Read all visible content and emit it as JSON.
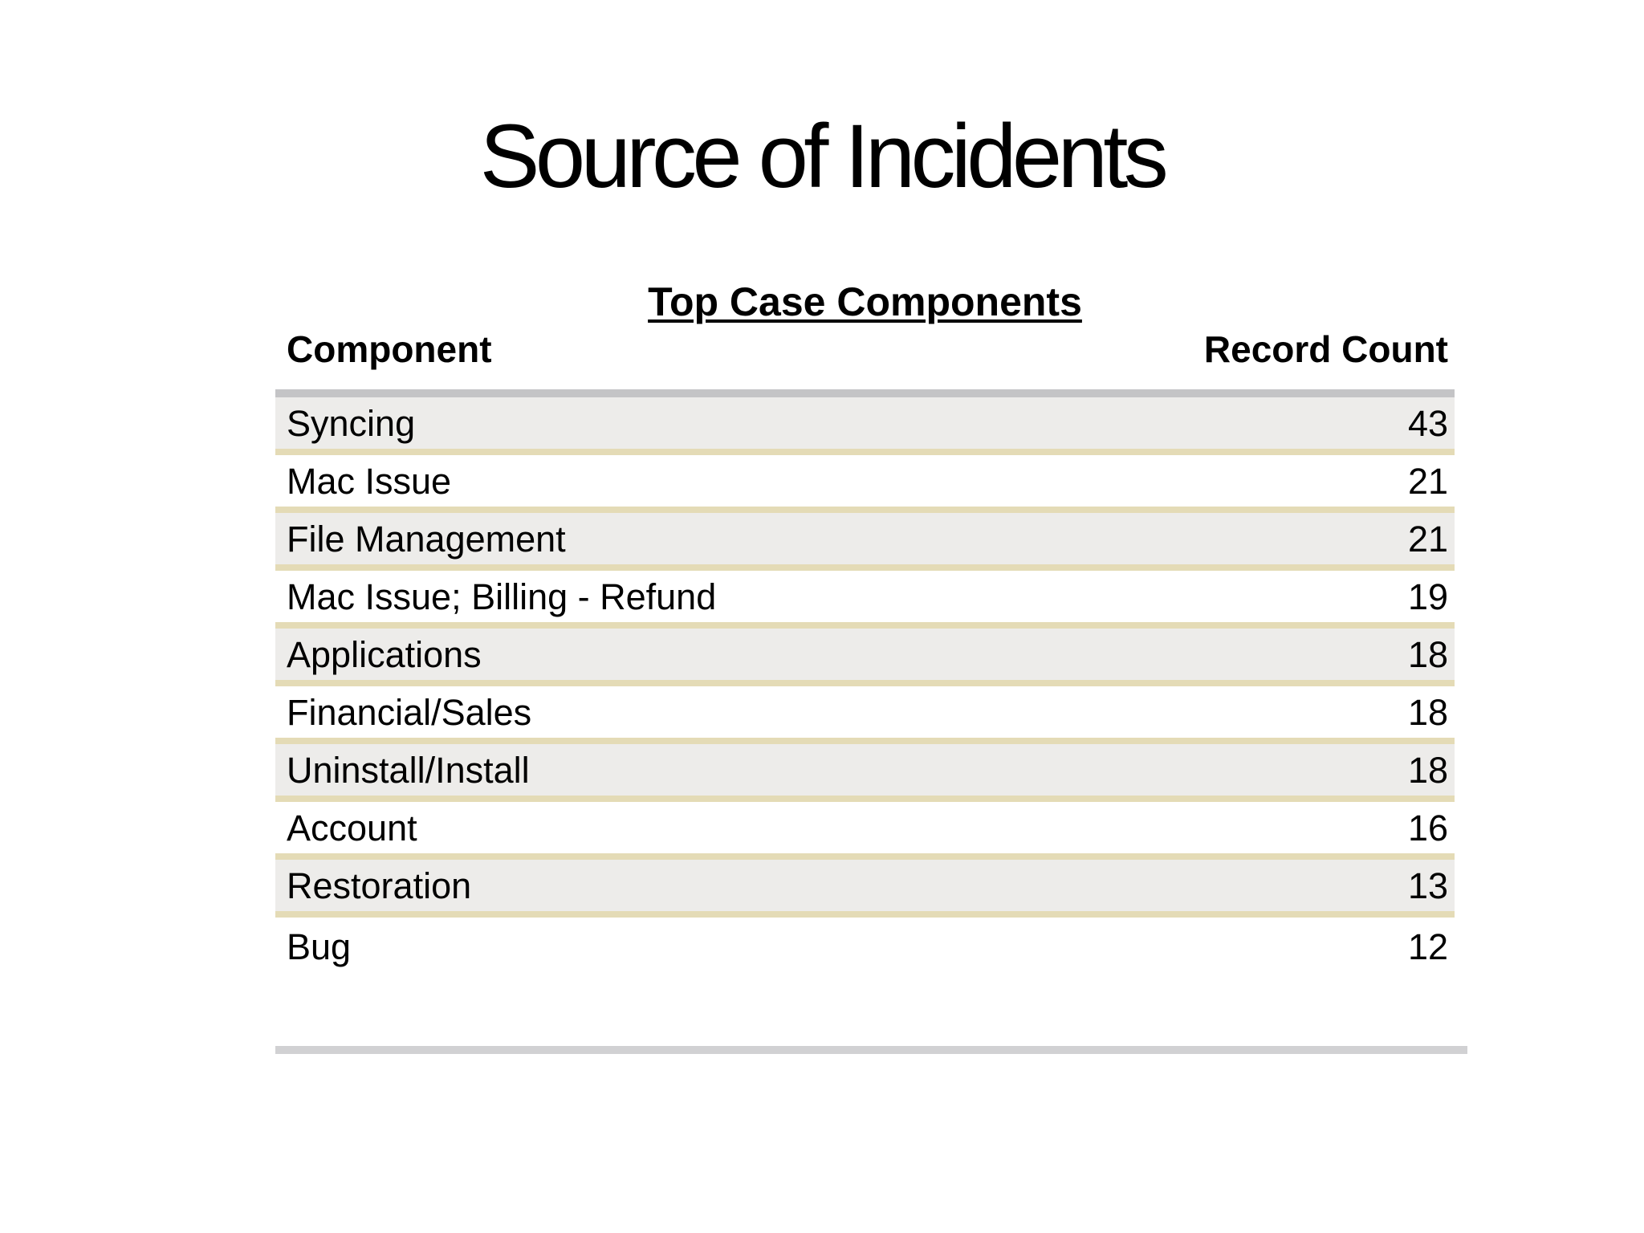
{
  "slide": {
    "title": "Source of Incidents"
  },
  "report": {
    "title": "Top Case Components",
    "columns": {
      "component": "Component",
      "record_count": "Record Count"
    },
    "rows": [
      {
        "component": "Syncing",
        "record_count": "43"
      },
      {
        "component": "Mac Issue",
        "record_count": "21"
      },
      {
        "component": "File Management",
        "record_count": "21"
      },
      {
        "component": "Mac Issue; Billing - Refund",
        "record_count": "19"
      },
      {
        "component": "Applications",
        "record_count": "18"
      },
      {
        "component": "Financial/Sales",
        "record_count": "18"
      },
      {
        "component": "Uninstall/Install",
        "record_count": "18"
      },
      {
        "component": "Account",
        "record_count": "16"
      },
      {
        "component": "Restoration",
        "record_count": "13"
      },
      {
        "component": "Bug",
        "record_count": "12"
      }
    ]
  },
  "colors": {
    "background": "#ffffff",
    "text": "#000000",
    "row_alt_bg": "#edecea",
    "row_separator": "#e4dbb6",
    "header_rule": "#c4c4c6",
    "footer_rule": "#d1d1d3"
  },
  "chart_data": {
    "type": "table",
    "title": "Top Case Components",
    "columns": [
      "Component",
      "Record Count"
    ],
    "rows": [
      [
        "Syncing",
        43
      ],
      [
        "Mac Issue",
        21
      ],
      [
        "File Management",
        21
      ],
      [
        "Mac Issue; Billing - Refund",
        19
      ],
      [
        "Applications",
        18
      ],
      [
        "Financial/Sales",
        18
      ],
      [
        "Uninstall/Install",
        18
      ],
      [
        "Account",
        16
      ],
      [
        "Restoration",
        13
      ],
      [
        "Bug",
        12
      ]
    ]
  }
}
